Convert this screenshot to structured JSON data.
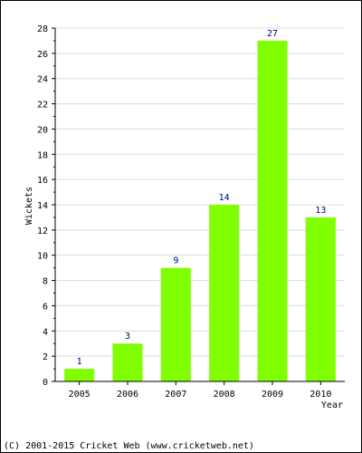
{
  "chart_data": {
    "type": "bar",
    "categories": [
      "2005",
      "2006",
      "2007",
      "2008",
      "2009",
      "2010"
    ],
    "values": [
      1,
      3,
      9,
      14,
      27,
      13
    ],
    "title": "",
    "xlabel": "Year",
    "ylabel": "Wickets",
    "ylim": [
      0,
      28
    ],
    "yticks": [
      0,
      2,
      4,
      6,
      8,
      10,
      12,
      14,
      16,
      18,
      20,
      22,
      24,
      26,
      28
    ],
    "grid": true,
    "bar_color": "#80ff00",
    "label_color": "#000080"
  },
  "footer": {
    "copyright": "(C) 2001-2015 Cricket Web (www.cricketweb.net)"
  }
}
